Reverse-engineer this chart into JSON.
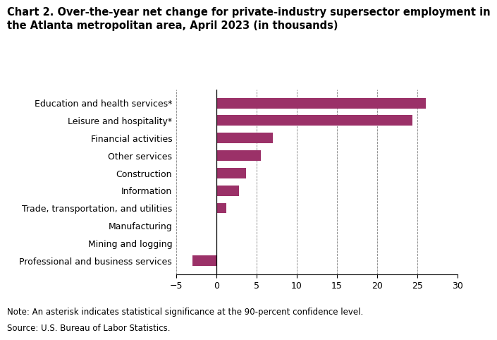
{
  "title_line1": "Chart 2. Over-the-year net change for private-industry supersector employment in",
  "title_line2": "the Atlanta metropolitan area, April 2023 (in thousands)",
  "categories": [
    "Professional and business services",
    "Mining and logging",
    "Manufacturing",
    "Trade, transportation, and utilities",
    "Information",
    "Construction",
    "Other services",
    "Financial activities",
    "Leisure and hospitality*",
    "Education and health services*"
  ],
  "values": [
    -3.0,
    0.0,
    0.1,
    1.2,
    2.8,
    3.7,
    5.5,
    7.0,
    24.4,
    26.0
  ],
  "bar_color": "#9b3168",
  "xlim": [
    -5,
    30
  ],
  "xticks": [
    -5,
    0,
    5,
    10,
    15,
    20,
    25,
    30
  ],
  "note": "Note: An asterisk indicates statistical significance at the 90-percent confidence level.",
  "source": "Source: U.S. Bureau of Labor Statistics.",
  "title_fontsize": 10.5,
  "axis_fontsize": 9,
  "note_fontsize": 8.5
}
